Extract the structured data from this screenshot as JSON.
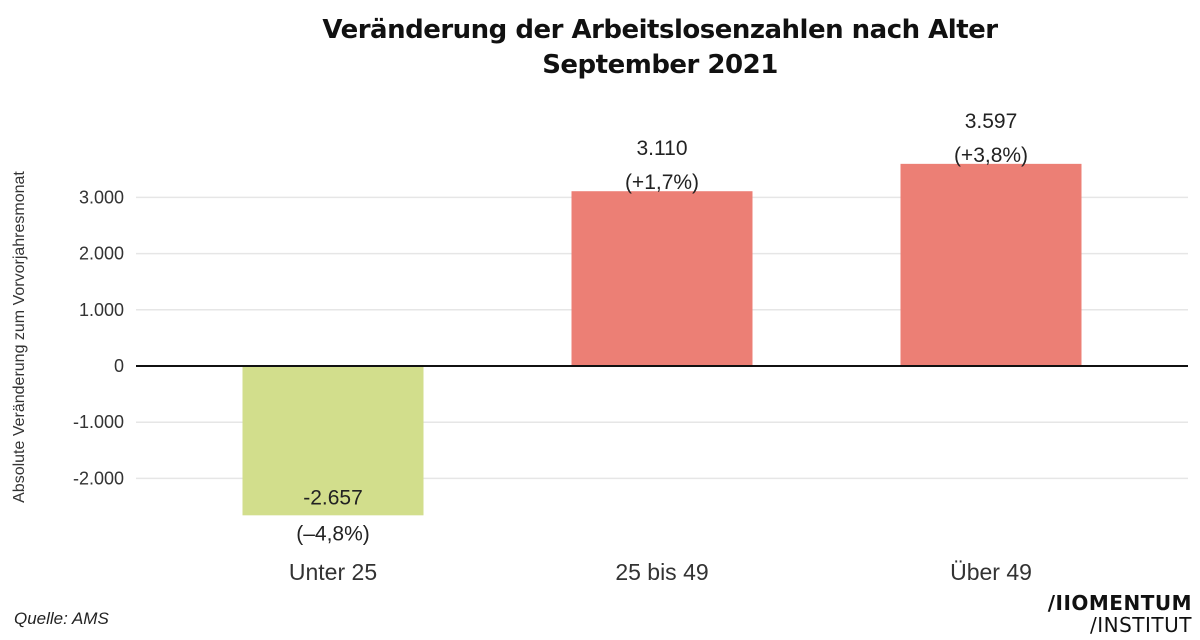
{
  "chart_data": {
    "type": "bar",
    "title_lines": [
      "Veränderung der Arbeitslosenzahlen nach Alter",
      "September 2021"
    ],
    "xlabel": "",
    "ylabel": "Absolute Veränderung zum Vorvorjahresmonat",
    "categories": [
      "Unter 25",
      "25 bis 49",
      "Über 49"
    ],
    "values": [
      -2657,
      3110,
      3597
    ],
    "value_labels": [
      "-2.657",
      "3.110",
      "3.597"
    ],
    "percent_labels": [
      "(–4,8%)",
      "(+1,7%)",
      "(+3,8%)"
    ],
    "bar_colors": [
      "#d2de8c",
      "#ec7f75",
      "#ec7f75"
    ],
    "ylim": [
      -2750,
      3850
    ],
    "yticks": [
      -2000,
      -1000,
      0,
      1000,
      2000,
      3000
    ],
    "ytick_labels": [
      "-2.000",
      "-1.000",
      "0",
      "1.000",
      "2.000",
      "3.000"
    ],
    "grid": true,
    "legend": "none"
  },
  "footer": {
    "source": "Quelle: AMS",
    "logo_line1": "/IIOMENTUM",
    "logo_line2": "/INSTITUT"
  }
}
